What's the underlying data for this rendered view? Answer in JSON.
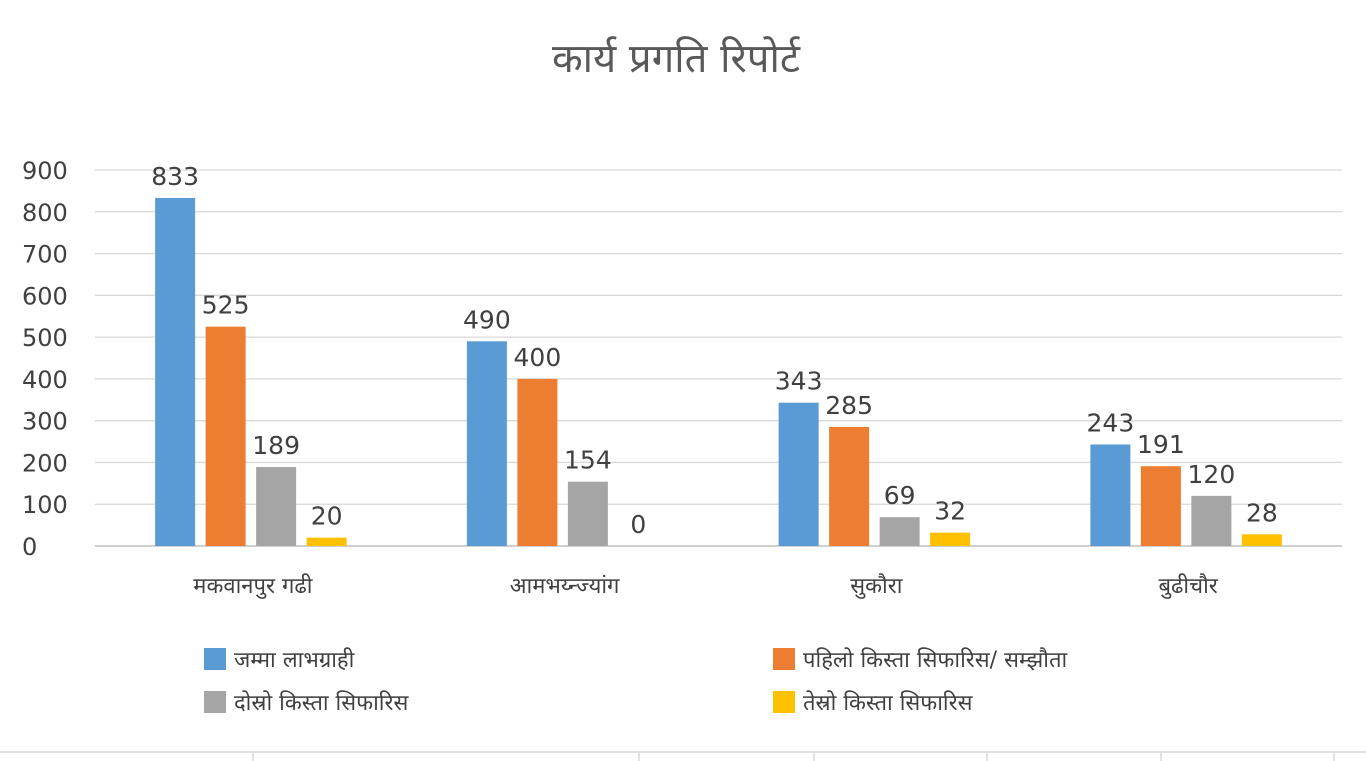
{
  "chart_data": {
    "type": "bar",
    "title": "कार्य प्रगति रिपोर्ट",
    "xlabel": "",
    "ylabel": "",
    "ylim": [
      0,
      900
    ],
    "yticks": [
      0,
      100,
      200,
      300,
      400,
      500,
      600,
      700,
      800,
      900
    ],
    "grid": true,
    "legend_position": "bottom",
    "categories": [
      "मकवानपुर गढी",
      "आमभय्न्ज्यांग",
      "सुकौरा",
      "बुढीचौर"
    ],
    "series": [
      {
        "name": "जम्मा लाभग्राही",
        "color": "#5b9bd5",
        "values": [
          833,
          490,
          343,
          243
        ]
      },
      {
        "name": "पहिलो किस्ता सिफारिस/ सम्झौता",
        "color": "#ed7d31",
        "values": [
          525,
          400,
          285,
          191
        ]
      },
      {
        "name": "दोस्रो किस्ता सिफारिस",
        "color": "#a5a5a5",
        "values": [
          189,
          154,
          69,
          120
        ]
      },
      {
        "name": "तेस्रो किस्ता सिफारिस",
        "color": "#ffc000",
        "values": [
          20,
          0,
          32,
          28
        ]
      }
    ]
  }
}
